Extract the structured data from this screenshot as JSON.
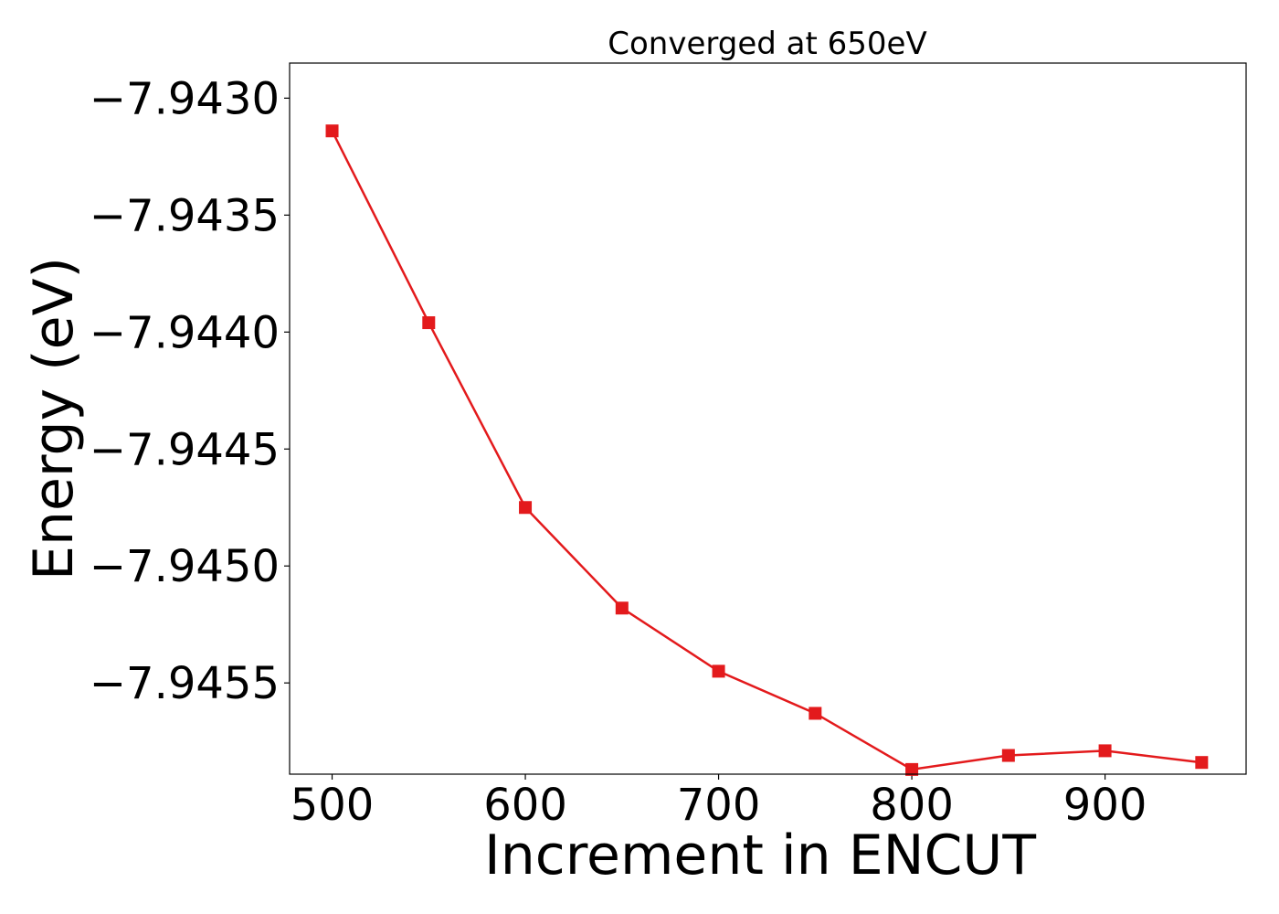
{
  "chart_data": {
    "type": "line",
    "title": "Converged at 650eV",
    "xlabel": "Increment in ENCUT",
    "ylabel": "Energy (eV)",
    "xlim": [
      478,
      973
    ],
    "ylim": [
      -7.94589,
      -7.94285
    ],
    "x_ticks": [
      500,
      600,
      700,
      800,
      900
    ],
    "x_tick_labels": [
      "500",
      "600",
      "700",
      "800",
      "900"
    ],
    "y_ticks": [
      -7.943,
      -7.9435,
      -7.944,
      -7.9445,
      -7.945,
      -7.9455
    ],
    "y_tick_labels": [
      "−7.9430",
      "−7.9435",
      "−7.9440",
      "−7.9445",
      "−7.9450",
      "−7.9455"
    ],
    "grid": false,
    "series": [
      {
        "marker": "square",
        "color": "#e31a1c",
        "x": [
          500,
          550,
          600,
          650,
          700,
          750,
          800,
          850,
          900,
          950
        ],
        "y": [
          -7.94314,
          -7.94396,
          -7.94475,
          -7.94518,
          -7.94545,
          -7.94563,
          -7.94587,
          -7.94581,
          -7.94579,
          -7.94584
        ]
      }
    ]
  }
}
